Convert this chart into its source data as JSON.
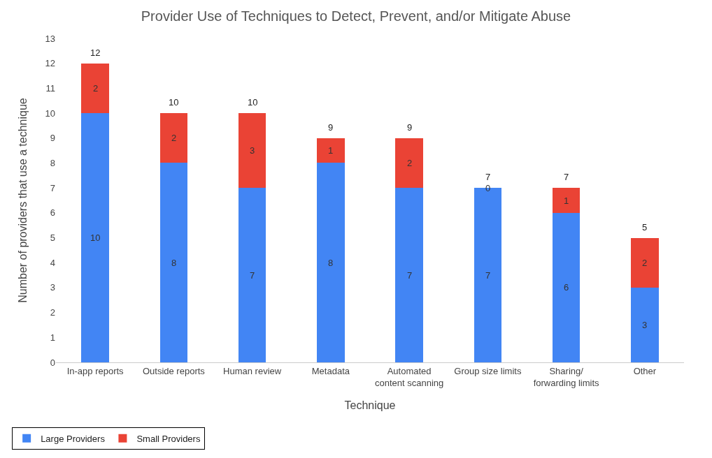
{
  "chart_data": {
    "type": "bar",
    "title": "Provider Use of Techniques to Detect, Prevent, and/or Mitigate Abuse",
    "xlabel": "Technique",
    "ylabel": "Number of providers that use a technique",
    "categories": [
      "In-app reports",
      "Outside reports",
      "Human review",
      "Metadata",
      "Automated\ncontent scanning",
      "Group size limits",
      "Sharing/\nforwarding limits",
      "Other"
    ],
    "series": [
      {
        "name": "Large Providers",
        "color": "#4285f4",
        "values": [
          10,
          8,
          7,
          8,
          7,
          7,
          6,
          3
        ]
      },
      {
        "name": "Small Providers",
        "color": "#ea4335",
        "values": [
          2,
          2,
          3,
          1,
          2,
          0,
          1,
          2
        ]
      }
    ],
    "stacked": true,
    "data_labels": true,
    "totals": [
      "12",
      "10",
      "10",
      "9",
      "9",
      "7",
      "7",
      "5"
    ],
    "ylim": [
      0,
      13
    ],
    "yticks": [
      0,
      1,
      2,
      3,
      4,
      5,
      6,
      7,
      8,
      9,
      10,
      11,
      12,
      13
    ],
    "grid": false,
    "legend": "bottom left"
  }
}
